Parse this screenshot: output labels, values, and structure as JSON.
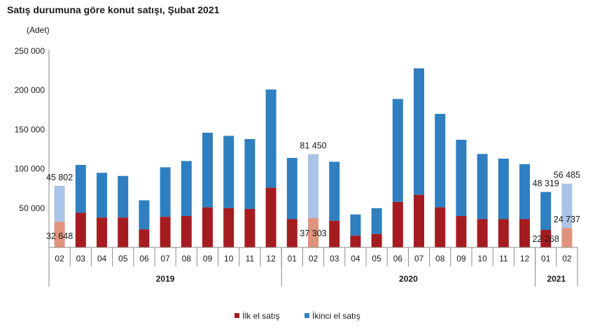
{
  "title": "Satış durumuna göre konut satışı, Şubat 2021",
  "unit": "(Adet)",
  "colors": {
    "first": "#a51c20",
    "second": "#2f7fc1",
    "first_hl": "#e0937c",
    "second_hl": "#a9c4e6"
  },
  "legend": [
    {
      "label": "İlk el satış",
      "color_key": "first"
    },
    {
      "label": "İkinci el satış",
      "color_key": "second"
    }
  ],
  "chart_data": {
    "type": "bar",
    "stacked": true,
    "title": "Satış durumuna göre konut satışı, Şubat 2021",
    "ylabel": "(Adet)",
    "ylim": [
      0,
      250000
    ],
    "yticks": [
      {
        "value": 50000,
        "label": "50 000"
      },
      {
        "value": 100000,
        "label": "100 000"
      },
      {
        "value": 150000,
        "label": "150 000"
      },
      {
        "value": 200000,
        "label": "200 000"
      },
      {
        "value": 250000,
        "label": "250 000"
      }
    ],
    "categories": [
      "02",
      "03",
      "04",
      "05",
      "06",
      "07",
      "08",
      "09",
      "10",
      "11",
      "12",
      "01",
      "02",
      "03",
      "04",
      "05",
      "06",
      "07",
      "08",
      "09",
      "10",
      "11",
      "12",
      "01",
      "02"
    ],
    "groups": [
      {
        "label": "2019",
        "start": 0,
        "end": 10
      },
      {
        "label": "2020",
        "start": 11,
        "end": 22
      },
      {
        "label": "2021",
        "start": 23,
        "end": 24
      }
    ],
    "highlight": [
      0,
      12,
      24
    ],
    "series": [
      {
        "name": "İlk el satış",
        "values": [
          32648,
          44000,
          38000,
          38000,
          23000,
          39000,
          40000,
          51000,
          50000,
          49000,
          76000,
          36000,
          37303,
          34000,
          15000,
          17000,
          58000,
          67000,
          51000,
          40000,
          36000,
          36000,
          36000,
          22268,
          24737
        ]
      },
      {
        "name": "İkinci el satış",
        "values": [
          45802,
          61000,
          57000,
          53000,
          37000,
          63000,
          70000,
          95000,
          92000,
          89000,
          125000,
          78000,
          81450,
          75000,
          27000,
          33000,
          131000,
          161000,
          119000,
          97000,
          83000,
          77000,
          70000,
          48319,
          56485
        ]
      }
    ],
    "data_labels": [
      {
        "index": 0,
        "series": 1,
        "text": "45 802"
      },
      {
        "index": 0,
        "series": 0,
        "text": "32 648"
      },
      {
        "index": 12,
        "series": 1,
        "text": "81 450"
      },
      {
        "index": 12,
        "series": 0,
        "text": "37 303"
      },
      {
        "index": 23,
        "series": 1,
        "text": "48 319"
      },
      {
        "index": 23,
        "series": 0,
        "text": "22 268"
      },
      {
        "index": 24,
        "series": 1,
        "text": "56 485"
      },
      {
        "index": 24,
        "series": 0,
        "text": "24 737"
      }
    ]
  }
}
